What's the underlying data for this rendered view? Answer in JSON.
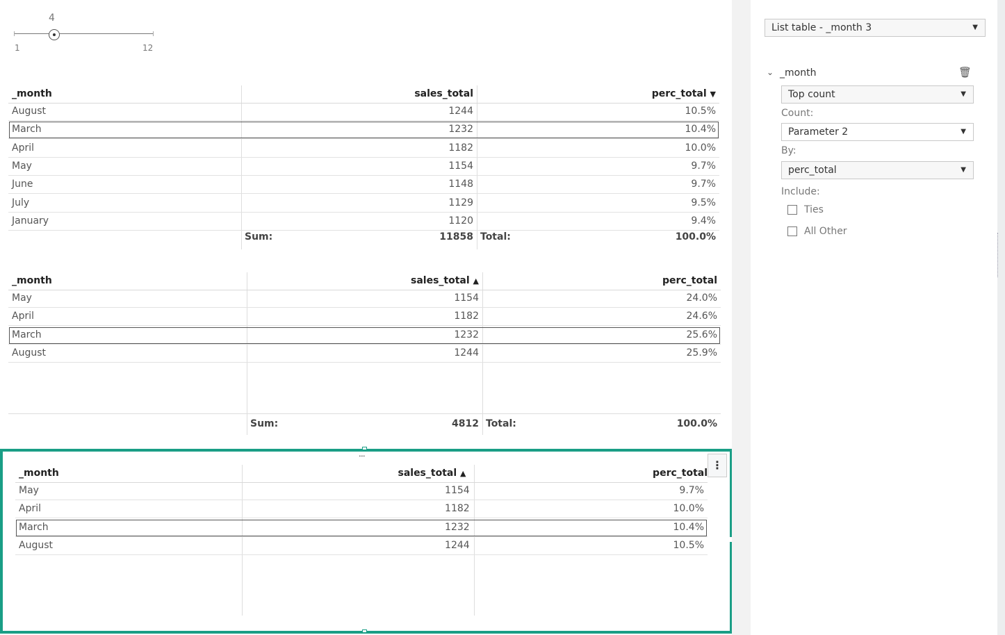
{
  "slider": {
    "value": "4",
    "min": "1",
    "max": "12",
    "fraction": 0.2727
  },
  "table1": {
    "headers": [
      "_month",
      "sales_total",
      "perc_total"
    ],
    "sort_indicator": "▼",
    "rows": [
      [
        "August",
        "1244",
        "10.5%"
      ],
      [
        "March",
        "1232",
        "10.4%"
      ],
      [
        "April",
        "1182",
        "10.0%"
      ],
      [
        "May",
        "1154",
        "9.7%"
      ],
      [
        "June",
        "1148",
        "9.7%"
      ],
      [
        "July",
        "1129",
        "9.5%"
      ],
      [
        "January",
        "1120",
        "9.4%"
      ]
    ],
    "selected_row": 1,
    "footer": {
      "sum_label": "Sum:",
      "sum": "11858",
      "total_label": "Total:",
      "total": "100.0%"
    }
  },
  "table2": {
    "headers": [
      "_month",
      "sales_total",
      "perc_total"
    ],
    "sort_indicator": "▲",
    "rows": [
      [
        "May",
        "1154",
        "24.0%"
      ],
      [
        "April",
        "1182",
        "24.6%"
      ],
      [
        "March",
        "1232",
        "25.6%"
      ],
      [
        "August",
        "1244",
        "25.9%"
      ]
    ],
    "selected_row": 2,
    "footer": {
      "sum_label": "Sum:",
      "sum": "4812",
      "total_label": "Total:",
      "total": "100.0%"
    }
  },
  "table3": {
    "headers": [
      "_month",
      "sales_total",
      "perc_total"
    ],
    "sort_indicator": "▲",
    "rows": [
      [
        "May",
        "1154",
        "9.7%"
      ],
      [
        "April",
        "1182",
        "10.0%"
      ],
      [
        "March",
        "1232",
        "10.4%"
      ],
      [
        "August",
        "1244",
        "10.5%"
      ]
    ],
    "selected_row": 2,
    "accent": "#1a9e86"
  },
  "panel": {
    "object_select": "List table - _month 3",
    "filter_field": "_month",
    "rank_type": "Top count",
    "count_label": "Count:",
    "count_value": "Parameter 2",
    "by_label": "By:",
    "by_value": "perc_total",
    "include_label": "Include:",
    "ties_label": "Ties",
    "ties_checked": false,
    "all_other_label": "All Other",
    "all_other_checked": false
  }
}
